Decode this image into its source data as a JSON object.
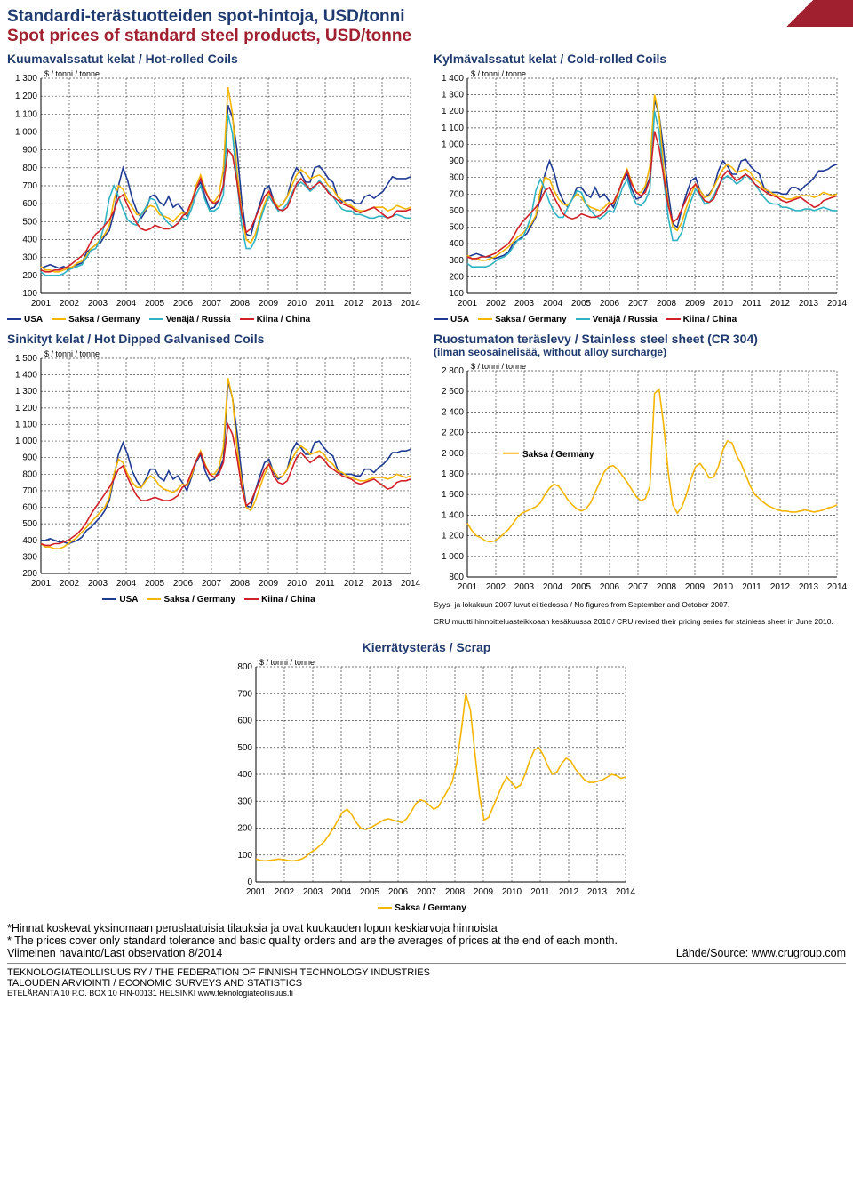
{
  "titles": {
    "fi": "Standardi-terästuotteiden spot-hintoja, USD/tonni",
    "en": "Spot prices of standard steel products, USD/tonne"
  },
  "unit": "$ / tonni / tonne",
  "years": [
    "2001",
    "2002",
    "2003",
    "2004",
    "2005",
    "2006",
    "2007",
    "2008",
    "2009",
    "2010",
    "2011",
    "2012",
    "2013",
    "2014"
  ],
  "colors": {
    "usa": "#1f3a93",
    "germany": "#f5b500",
    "russia": "#2fb3c4",
    "china": "#d22028",
    "grid": "#444444",
    "bg": "#ffffff"
  },
  "legend_labels": {
    "usa": "USA",
    "germany": "Saksa / Germany",
    "russia": "Venäjä / Russia",
    "china": "Kiina / China"
  },
  "charts": {
    "hot": {
      "title": "Kuumavalssatut kelat / Hot-rolled Coils",
      "ymin": 100,
      "ymax": 1300,
      "ystep": 100,
      "series": [
        "usa",
        "germany",
        "russia",
        "china"
      ],
      "data": {
        "usa": [
          240,
          250,
          260,
          250,
          240,
          250,
          230,
          250,
          260,
          270,
          330,
          350,
          370,
          380,
          420,
          450,
          550,
          700,
          800,
          730,
          630,
          560,
          520,
          560,
          640,
          650,
          610,
          590,
          640,
          580,
          600,
          570,
          530,
          600,
          680,
          720,
          640,
          570,
          580,
          620,
          700,
          1150,
          1080,
          900,
          620,
          430,
          420,
          520,
          600,
          680,
          700,
          620,
          580,
          600,
          640,
          740,
          800,
          770,
          720,
          720,
          800,
          810,
          780,
          740,
          720,
          640,
          610,
          620,
          620,
          600,
          600,
          640,
          650,
          630,
          650,
          670,
          710,
          750,
          740,
          740,
          740,
          750
        ],
        "germany": [
          250,
          230,
          230,
          220,
          220,
          230,
          240,
          250,
          270,
          280,
          310,
          350,
          370,
          400,
          430,
          480,
          620,
          700,
          680,
          620,
          580,
          540,
          540,
          570,
          590,
          580,
          540,
          530,
          520,
          500,
          530,
          550,
          540,
          600,
          700,
          760,
          680,
          620,
          610,
          650,
          790,
          1250,
          1100,
          780,
          550,
          400,
          380,
          430,
          520,
          600,
          660,
          620,
          580,
          600,
          640,
          700,
          760,
          790,
          770,
          740,
          750,
          760,
          740,
          700,
          680,
          640,
          620,
          600,
          590,
          570,
          560,
          560,
          570,
          580,
          580,
          580,
          560,
          570,
          590,
          580,
          570,
          580
        ],
        "russia": [
          220,
          200,
          200,
          200,
          200,
          210,
          230,
          240,
          250,
          260,
          300,
          340,
          350,
          400,
          490,
          630,
          700,
          640,
          570,
          510,
          490,
          480,
          540,
          580,
          630,
          620,
          560,
          520,
          490,
          470,
          490,
          520,
          510,
          570,
          650,
          700,
          620,
          560,
          560,
          580,
          650,
          1100,
          990,
          720,
          480,
          350,
          350,
          400,
          500,
          580,
          640,
          600,
          560,
          570,
          600,
          660,
          700,
          720,
          700,
          670,
          690,
          730,
          700,
          670,
          640,
          600,
          570,
          560,
          560,
          540,
          540,
          530,
          520,
          520,
          530,
          530,
          520,
          530,
          540,
          530,
          520,
          520
        ],
        "china": [
          230,
          220,
          220,
          230,
          230,
          240,
          250,
          270,
          290,
          310,
          340,
          390,
          430,
          450,
          480,
          510,
          560,
          630,
          650,
          590,
          540,
          490,
          460,
          450,
          460,
          480,
          470,
          460,
          460,
          470,
          490,
          530,
          550,
          610,
          680,
          740,
          670,
          620,
          600,
          620,
          700,
          900,
          870,
          720,
          540,
          440,
          460,
          520,
          580,
          640,
          670,
          610,
          570,
          560,
          580,
          640,
          710,
          740,
          710,
          680,
          700,
          720,
          700,
          660,
          640,
          620,
          600,
          590,
          580,
          560,
          550,
          560,
          570,
          580,
          560,
          540,
          520,
          530,
          560,
          560,
          560,
          570
        ]
      }
    },
    "cold": {
      "title": "Kylmävalssatut kelat / Cold-rolled Coils",
      "ymin": 100,
      "ymax": 1400,
      "ystep": 100,
      "series": [
        "usa",
        "germany",
        "russia",
        "china"
      ],
      "data": {
        "usa": [
          320,
          330,
          340,
          330,
          320,
          320,
          310,
          320,
          330,
          350,
          400,
          420,
          440,
          460,
          510,
          560,
          680,
          820,
          900,
          830,
          720,
          660,
          620,
          670,
          740,
          740,
          700,
          680,
          740,
          680,
          700,
          660,
          620,
          700,
          780,
          820,
          730,
          670,
          680,
          730,
          800,
          1270,
          1180,
          970,
          710,
          520,
          500,
          610,
          700,
          780,
          800,
          720,
          680,
          700,
          740,
          840,
          900,
          870,
          820,
          820,
          900,
          910,
          870,
          840,
          820,
          740,
          710,
          710,
          710,
          700,
          700,
          740,
          740,
          720,
          750,
          770,
          800,
          840,
          840,
          850,
          870,
          880
        ],
        "germany": [
          330,
          310,
          310,
          300,
          300,
          310,
          320,
          340,
          360,
          380,
          410,
          440,
          460,
          490,
          520,
          570,
          720,
          800,
          790,
          720,
          670,
          640,
          630,
          670,
          700,
          680,
          640,
          620,
          610,
          600,
          620,
          650,
          640,
          700,
          790,
          850,
          770,
          710,
          710,
          750,
          870,
          1300,
          1180,
          860,
          650,
          500,
          480,
          530,
          620,
          700,
          760,
          720,
          680,
          690,
          740,
          800,
          850,
          880,
          860,
          830,
          840,
          850,
          830,
          790,
          770,
          730,
          720,
          700,
          690,
          680,
          670,
          670,
          680,
          690,
          690,
          690,
          680,
          690,
          710,
          700,
          690,
          700
        ],
        "russia": [
          280,
          260,
          260,
          260,
          260,
          270,
          290,
          310,
          320,
          340,
          380,
          420,
          430,
          490,
          570,
          720,
          790,
          730,
          650,
          590,
          560,
          560,
          620,
          670,
          720,
          710,
          640,
          600,
          570,
          550,
          570,
          600,
          590,
          660,
          740,
          790,
          700,
          640,
          630,
          660,
          730,
          1200,
          1080,
          800,
          560,
          420,
          420,
          470,
          580,
          660,
          730,
          690,
          640,
          650,
          690,
          750,
          790,
          810,
          790,
          760,
          780,
          820,
          790,
          760,
          720,
          680,
          650,
          640,
          640,
          620,
          620,
          610,
          600,
          600,
          610,
          610,
          600,
          610,
          620,
          610,
          600,
          600
        ],
        "china": [
          320,
          310,
          310,
          320,
          320,
          330,
          340,
          360,
          380,
          400,
          440,
          490,
          530,
          560,
          590,
          620,
          660,
          720,
          740,
          680,
          630,
          580,
          560,
          550,
          560,
          580,
          570,
          560,
          560,
          570,
          590,
          630,
          650,
          710,
          780,
          840,
          760,
          710,
          690,
          710,
          790,
          1080,
          980,
          810,
          630,
          530,
          550,
          610,
          670,
          730,
          760,
          700,
          660,
          650,
          670,
          740,
          810,
          840,
          810,
          780,
          800,
          820,
          800,
          760,
          740,
          720,
          700,
          690,
          680,
          660,
          650,
          660,
          670,
          680,
          660,
          640,
          620,
          630,
          660,
          670,
          680,
          690
        ]
      }
    },
    "galv": {
      "title": "Sinkityt kelat / Hot Dipped Galvanised Coils",
      "ymin": 200,
      "ymax": 1500,
      "ystep": 100,
      "series": [
        "usa",
        "germany",
        "china"
      ],
      "data": {
        "usa": [
          400,
          400,
          410,
          400,
          390,
          390,
          380,
          390,
          400,
          420,
          460,
          480,
          510,
          540,
          580,
          640,
          780,
          920,
          990,
          920,
          820,
          760,
          720,
          770,
          830,
          830,
          780,
          760,
          820,
          770,
          790,
          750,
          700,
          780,
          870,
          920,
          820,
          760,
          770,
          820,
          890,
          1360,
          1260,
          1050,
          800,
          610,
          600,
          700,
          790,
          870,
          890,
          810,
          770,
          790,
          830,
          940,
          990,
          960,
          920,
          920,
          990,
          1000,
          960,
          930,
          910,
          830,
          800,
          800,
          800,
          790,
          790,
          830,
          830,
          810,
          840,
          860,
          890,
          930,
          930,
          940,
          940,
          950
        ],
        "germany": [
          380,
          360,
          360,
          350,
          350,
          360,
          380,
          400,
          420,
          450,
          480,
          510,
          540,
          570,
          600,
          660,
          800,
          890,
          870,
          800,
          750,
          720,
          720,
          760,
          790,
          770,
          730,
          710,
          700,
          690,
          710,
          740,
          730,
          790,
          880,
          940,
          860,
          800,
          800,
          840,
          960,
          1380,
          1260,
          960,
          750,
          600,
          580,
          640,
          720,
          800,
          860,
          820,
          780,
          790,
          830,
          890,
          940,
          970,
          950,
          920,
          930,
          940,
          920,
          880,
          860,
          820,
          810,
          790,
          780,
          770,
          760,
          760,
          770,
          780,
          780,
          780,
          770,
          780,
          800,
          790,
          780,
          790
        ],
        "china": [
          380,
          370,
          370,
          380,
          380,
          390,
          400,
          420,
          440,
          470,
          510,
          560,
          600,
          640,
          680,
          720,
          770,
          830,
          850,
          780,
          720,
          670,
          640,
          640,
          650,
          660,
          650,
          640,
          640,
          650,
          670,
          720,
          740,
          810,
          880,
          930,
          850,
          800,
          780,
          800,
          870,
          1100,
          1040,
          900,
          720,
          610,
          630,
          700,
          760,
          830,
          860,
          790,
          750,
          740,
          760,
          830,
          900,
          930,
          900,
          870,
          890,
          910,
          890,
          850,
          830,
          810,
          790,
          780,
          770,
          750,
          740,
          750,
          760,
          770,
          750,
          730,
          710,
          720,
          750,
          760,
          760,
          770
        ]
      }
    },
    "stainless": {
      "title": "Ruostumaton teräslevy / Stainless steel sheet (CR 304)",
      "subtitle": "(ilman seosainelisää, without alloy surcharge)",
      "ymin": 800,
      "ymax": 2800,
      "ystep": 200,
      "series": [
        "germany"
      ],
      "data": {
        "germany": [
          1320,
          1250,
          1200,
          1180,
          1150,
          1140,
          1150,
          1180,
          1220,
          1260,
          1320,
          1380,
          1420,
          1440,
          1460,
          1480,
          1520,
          1600,
          1660,
          1700,
          1680,
          1620,
          1550,
          1500,
          1460,
          1440,
          1460,
          1520,
          1620,
          1720,
          1820,
          1870,
          1880,
          1840,
          1780,
          1720,
          1650,
          1580,
          1540,
          1560,
          1680,
          2580,
          2620,
          2280,
          1820,
          1500,
          1420,
          1480,
          1600,
          1750,
          1870,
          1900,
          1840,
          1760,
          1770,
          1870,
          2030,
          2120,
          2100,
          1980,
          1900,
          1790,
          1680,
          1600,
          1560,
          1520,
          1490,
          1470,
          1450,
          1440,
          1440,
          1430,
          1430,
          1440,
          1450,
          1440,
          1430,
          1440,
          1450,
          1470,
          1480,
          1500
        ]
      },
      "footnote1": "Syys- ja lokakuun 2007 luvut ei tiedossa / No figures from September and October 2007.",
      "footnote2": "CRU muutti hinnoitteluasteikkoaan kesäkuussa 2010 / CRU revised their pricing series for stainless sheet in June 2010."
    },
    "scrap": {
      "title": "Kierrätysteräs / Scrap",
      "ymin": 0,
      "ymax": 800,
      "ystep": 100,
      "series": [
        "germany"
      ],
      "data": {
        "germany": [
          85,
          80,
          78,
          80,
          82,
          85,
          83,
          80,
          78,
          80,
          85,
          95,
          110,
          120,
          135,
          150,
          175,
          200,
          230,
          260,
          270,
          250,
          220,
          200,
          195,
          200,
          210,
          220,
          230,
          235,
          230,
          225,
          220,
          235,
          260,
          290,
          305,
          300,
          285,
          270,
          280,
          310,
          340,
          370,
          440,
          560,
          700,
          640,
          480,
          320,
          230,
          240,
          280,
          320,
          360,
          390,
          370,
          350,
          360,
          400,
          450,
          490,
          500,
          470,
          430,
          400,
          410,
          440,
          460,
          450,
          420,
          400,
          380,
          370,
          370,
          375,
          380,
          390,
          400,
          395,
          385,
          390
        ]
      }
    }
  },
  "footer": {
    "note_fi": "*Hinnat koskevat yksinomaan peruslaatuisia tilauksia ja ovat kuukauden lopun keskiarvoja hinnoista",
    "note_en": "* The prices cover only standard tolerance and basic quality orders and are the averages of prices at the end of each month.",
    "last_obs": "Viimeinen havainto/Last observation 8/2014",
    "source": "Lähde/Source: www.crugroup.com",
    "org1": "TEKNOLOGIATEOLLISUUS RY  /  THE FEDERATION OF FINNISH TECHNOLOGY INDUSTRIES",
    "org2": "TALOUDEN ARVIOINTI / ECONOMIC SURVEYS AND STATISTICS",
    "addr": "ETELÄRANTA 10  P.O. BOX 10  FIN-00131  HELSINKI  www.teknologiateollisuus.fi"
  }
}
